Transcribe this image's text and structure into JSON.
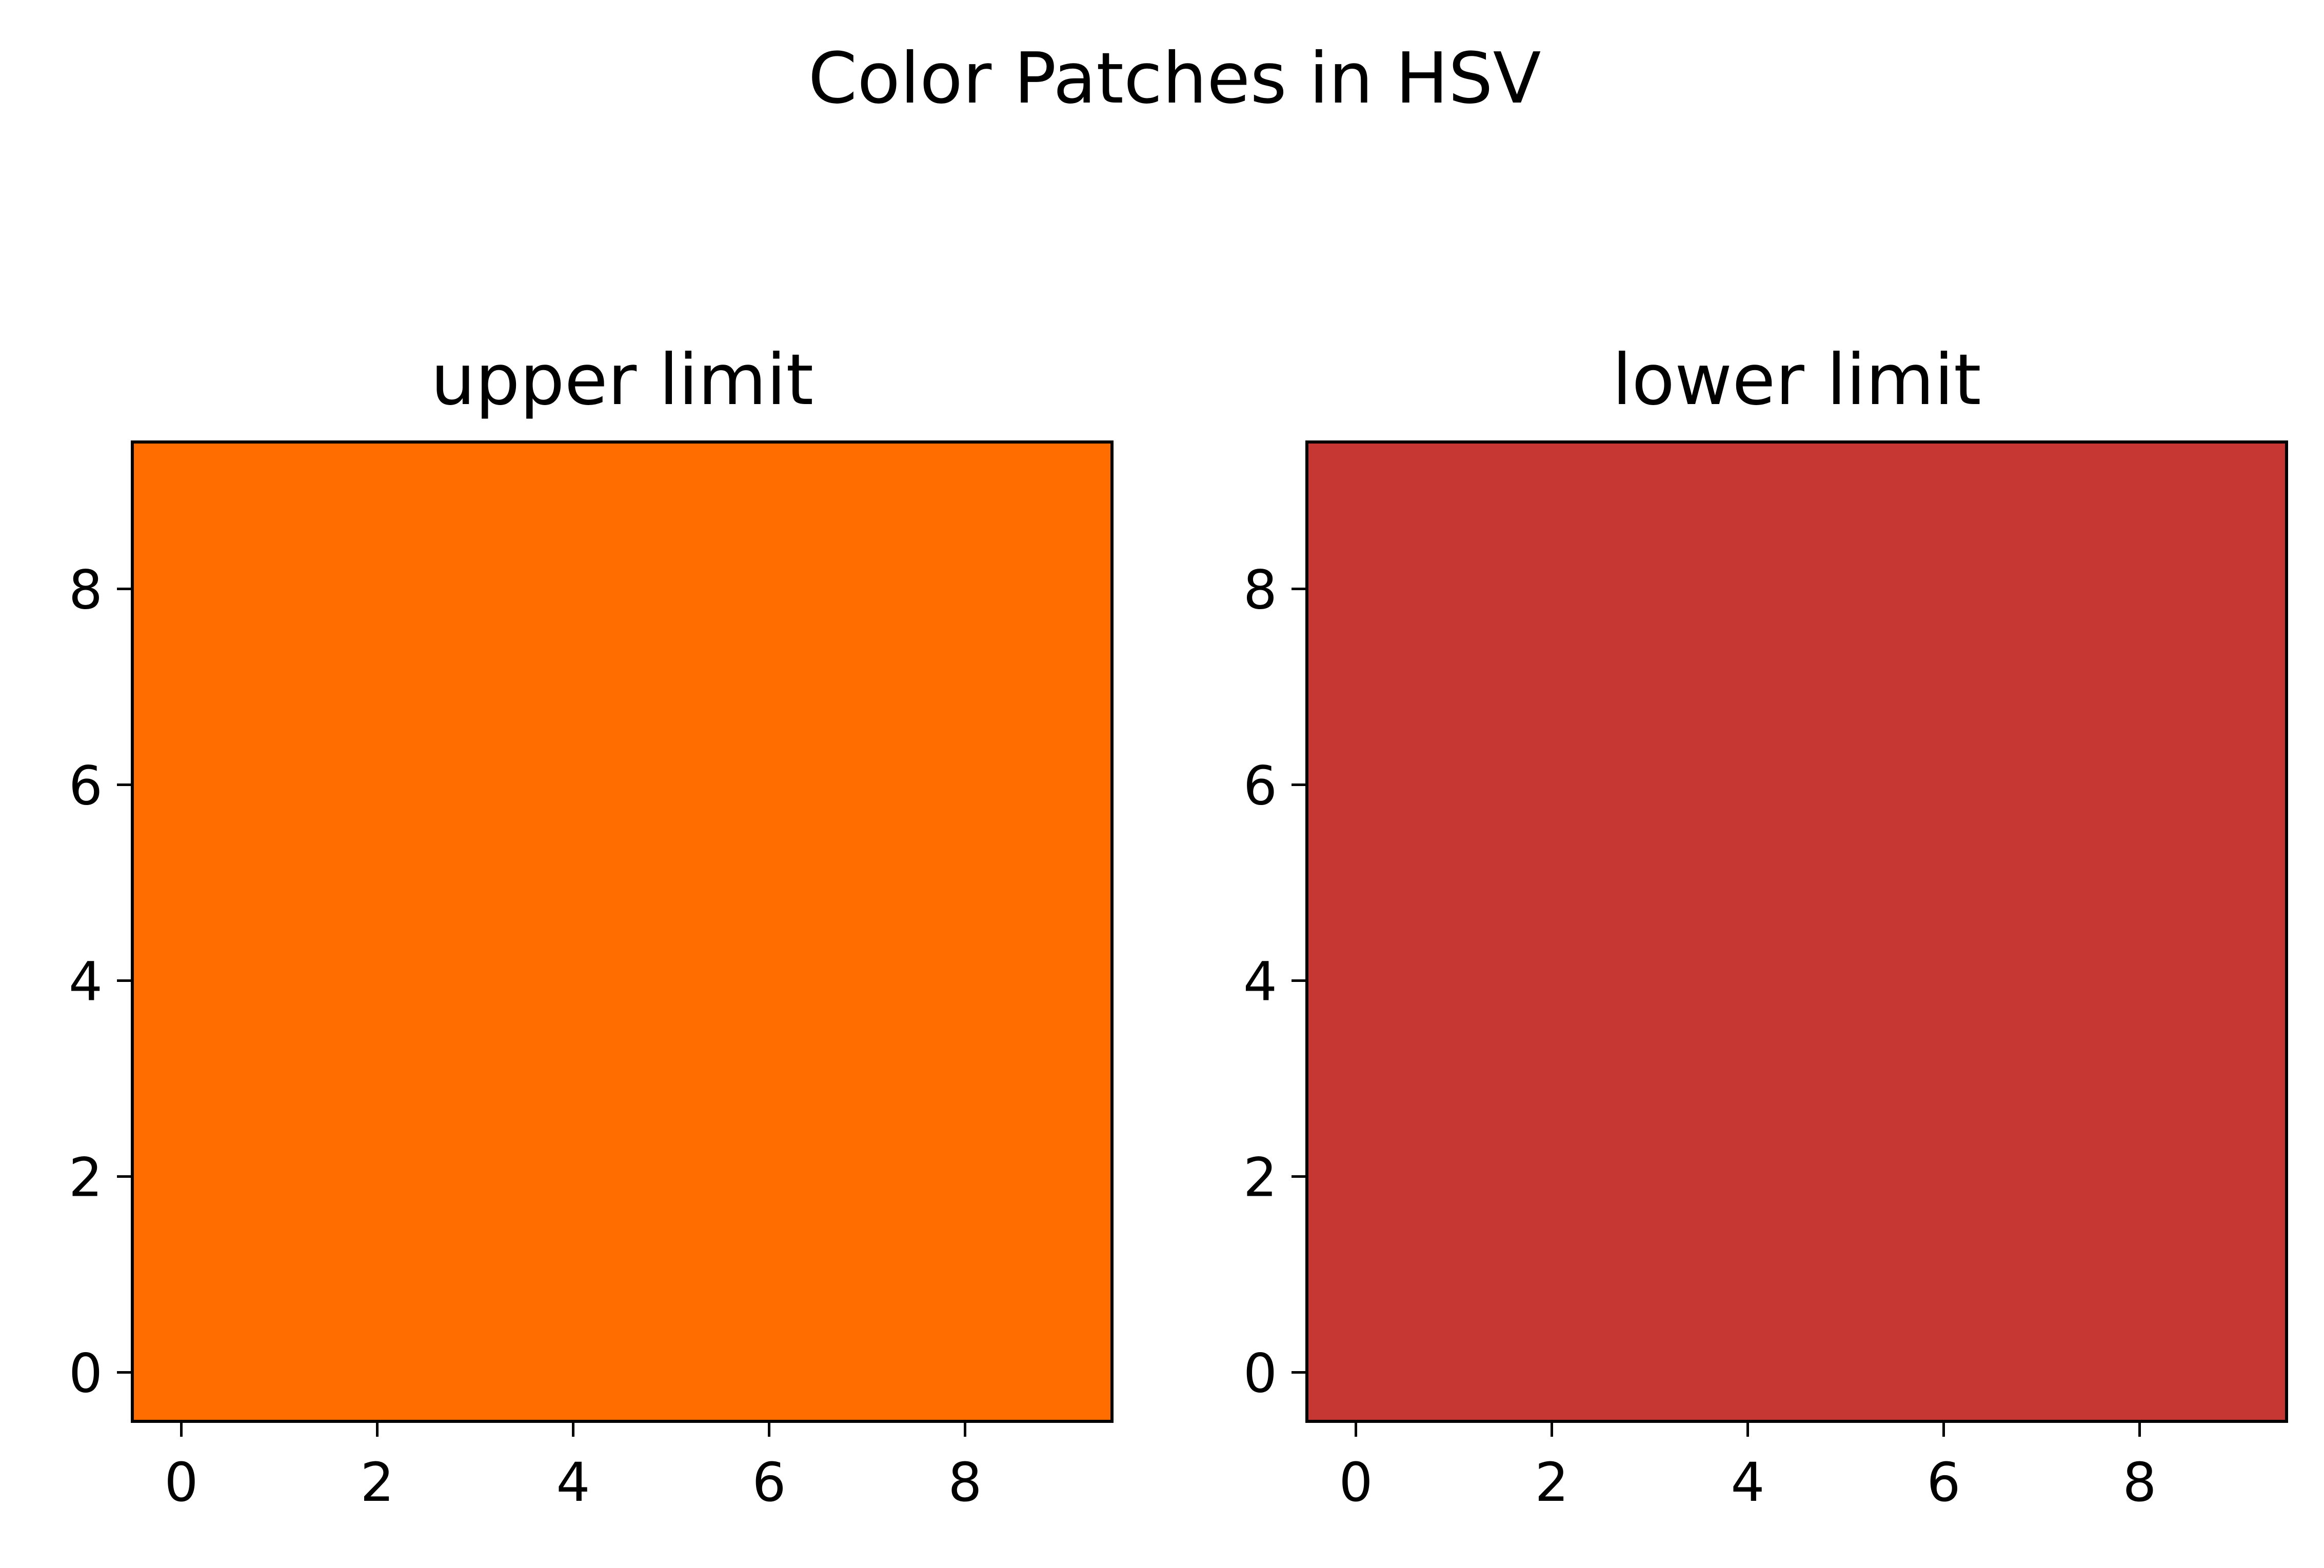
{
  "chart_data": {
    "title": "Color Patches in HSV",
    "type": "heatmap",
    "panels": [
      {
        "title": "upper limit",
        "color": "#ff6d00",
        "grid_size": [
          10,
          10
        ],
        "xlim": [
          -0.5,
          9.5
        ],
        "ylim": [
          9.5,
          -0.5
        ],
        "x_ticks": [
          "0",
          "2",
          "4",
          "6",
          "8"
        ],
        "y_ticks": [
          "0",
          "2",
          "4",
          "6",
          "8"
        ]
      },
      {
        "title": "lower limit",
        "color": "#c63633",
        "grid_size": [
          10,
          10
        ],
        "xlim": [
          -0.5,
          9.5
        ],
        "ylim": [
          9.5,
          -0.5
        ],
        "x_ticks": [
          "0",
          "2",
          "4",
          "6",
          "8"
        ],
        "y_ticks": [
          "0",
          "2",
          "4",
          "6",
          "8"
        ]
      }
    ]
  }
}
